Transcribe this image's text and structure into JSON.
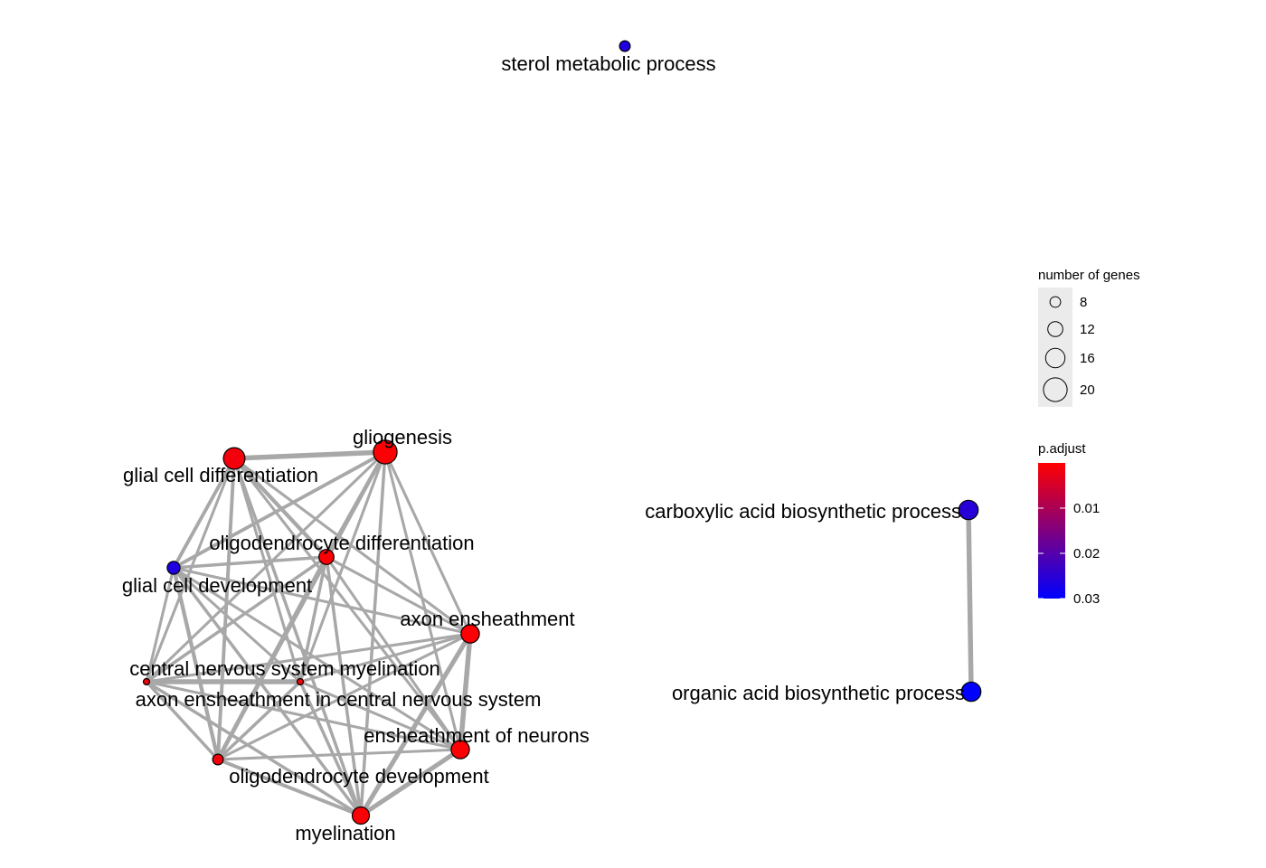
{
  "network": {
    "nodes": [
      {
        "id": "sterol",
        "label": "sterol metabolic process",
        "genes": 8,
        "p_adjust": 0.029
      },
      {
        "id": "gliogenesis",
        "label": "gliogenesis",
        "genes": 20,
        "p_adjust": 0.001
      },
      {
        "id": "glial_diff",
        "label": "glial cell differentiation",
        "genes": 18,
        "p_adjust": 0.002
      },
      {
        "id": "oligo_diff",
        "label": "oligodendrocyte differentiation",
        "genes": 12,
        "p_adjust": 0.001
      },
      {
        "id": "glial_dev",
        "label": "glial cell development",
        "genes": 10,
        "p_adjust": 0.029
      },
      {
        "id": "axon_ens",
        "label": "axon ensheathment",
        "genes": 15,
        "p_adjust": 0.001
      },
      {
        "id": "cns_myel",
        "label": "central nervous system myelination",
        "genes": 4,
        "p_adjust": 0.002
      },
      {
        "id": "axon_ens_cns",
        "label": "axon ensheathment in central nervous system",
        "genes": 4,
        "p_adjust": 0.002
      },
      {
        "id": "ens_neurons",
        "label": "ensheathment of neurons",
        "genes": 15,
        "p_adjust": 0.001
      },
      {
        "id": "oligo_dev",
        "label": "oligodendrocyte development",
        "genes": 8,
        "p_adjust": 0.002
      },
      {
        "id": "myelination",
        "label": "myelination",
        "genes": 14,
        "p_adjust": 0.001
      },
      {
        "id": "carboxylic",
        "label": "carboxylic acid biosynthetic process",
        "genes": 16,
        "p_adjust": 0.028
      },
      {
        "id": "organic",
        "label": "organic acid biosynthetic process",
        "genes": 16,
        "p_adjust": 0.033
      }
    ],
    "edges": [
      {
        "source": "glial_diff",
        "target": "gliogenesis",
        "weight": 1.0
      },
      {
        "source": "glial_diff",
        "target": "oligo_diff",
        "weight": 0.7
      },
      {
        "source": "glial_diff",
        "target": "glial_dev",
        "weight": 0.6
      },
      {
        "source": "glial_diff",
        "target": "axon_ens",
        "weight": 0.4
      },
      {
        "source": "glial_diff",
        "target": "cns_myel",
        "weight": 0.4
      },
      {
        "source": "glial_diff",
        "target": "axon_ens_cns",
        "weight": 0.4
      },
      {
        "source": "glial_diff",
        "target": "ens_neurons",
        "weight": 0.4
      },
      {
        "source": "glial_diff",
        "target": "oligo_dev",
        "weight": 0.6
      },
      {
        "source": "glial_diff",
        "target": "myelination",
        "weight": 0.5
      },
      {
        "source": "gliogenesis",
        "target": "oligo_diff",
        "weight": 0.7
      },
      {
        "source": "gliogenesis",
        "target": "glial_dev",
        "weight": 0.6
      },
      {
        "source": "gliogenesis",
        "target": "axon_ens",
        "weight": 0.4
      },
      {
        "source": "gliogenesis",
        "target": "cns_myel",
        "weight": 0.4
      },
      {
        "source": "gliogenesis",
        "target": "axon_ens_cns",
        "weight": 0.4
      },
      {
        "source": "gliogenesis",
        "target": "ens_neurons",
        "weight": 0.4
      },
      {
        "source": "gliogenesis",
        "target": "oligo_dev",
        "weight": 0.6
      },
      {
        "source": "gliogenesis",
        "target": "myelination",
        "weight": 0.5
      },
      {
        "source": "oligo_diff",
        "target": "glial_dev",
        "weight": 0.5
      },
      {
        "source": "oligo_diff",
        "target": "axon_ens",
        "weight": 0.4
      },
      {
        "source": "oligo_diff",
        "target": "cns_myel",
        "weight": 0.5
      },
      {
        "source": "oligo_diff",
        "target": "axon_ens_cns",
        "weight": 0.5
      },
      {
        "source": "oligo_diff",
        "target": "ens_neurons",
        "weight": 0.4
      },
      {
        "source": "oligo_diff",
        "target": "oligo_dev",
        "weight": 0.8
      },
      {
        "source": "oligo_diff",
        "target": "myelination",
        "weight": 0.5
      },
      {
        "source": "glial_dev",
        "target": "axon_ens",
        "weight": 0.4
      },
      {
        "source": "glial_dev",
        "target": "cns_myel",
        "weight": 0.4
      },
      {
        "source": "glial_dev",
        "target": "axon_ens_cns",
        "weight": 0.4
      },
      {
        "source": "glial_dev",
        "target": "ens_neurons",
        "weight": 0.4
      },
      {
        "source": "glial_dev",
        "target": "oligo_dev",
        "weight": 0.7
      },
      {
        "source": "glial_dev",
        "target": "myelination",
        "weight": 0.5
      },
      {
        "source": "axon_ens",
        "target": "ens_neurons",
        "weight": 1.0
      },
      {
        "source": "axon_ens",
        "target": "myelination",
        "weight": 0.9
      },
      {
        "source": "axon_ens",
        "target": "cns_myel",
        "weight": 0.4
      },
      {
        "source": "axon_ens",
        "target": "axon_ens_cns",
        "weight": 0.4
      },
      {
        "source": "axon_ens",
        "target": "oligo_dev",
        "weight": 0.4
      },
      {
        "source": "ens_neurons",
        "target": "myelination",
        "weight": 0.9
      },
      {
        "source": "ens_neurons",
        "target": "cns_myel",
        "weight": 0.4
      },
      {
        "source": "ens_neurons",
        "target": "axon_ens_cns",
        "weight": 0.4
      },
      {
        "source": "ens_neurons",
        "target": "oligo_dev",
        "weight": 0.4
      },
      {
        "source": "myelination",
        "target": "cns_myel",
        "weight": 0.5
      },
      {
        "source": "myelination",
        "target": "axon_ens_cns",
        "weight": 0.5
      },
      {
        "source": "myelination",
        "target": "oligo_dev",
        "weight": 0.6
      },
      {
        "source": "cns_myel",
        "target": "axon_ens_cns",
        "weight": 1.0
      },
      {
        "source": "cns_myel",
        "target": "oligo_dev",
        "weight": 0.5
      },
      {
        "source": "axon_ens_cns",
        "target": "oligo_dev",
        "weight": 0.5
      },
      {
        "source": "carboxylic",
        "target": "organic",
        "weight": 1.0
      }
    ]
  },
  "legend": {
    "size_title": "number of genes",
    "size_entries": [
      {
        "label": "8",
        "genes": 8
      },
      {
        "label": "12",
        "genes": 12
      },
      {
        "label": "16",
        "genes": 16
      },
      {
        "label": "20",
        "genes": 20
      }
    ],
    "color_title": "p.adjust",
    "color_ticks": [
      {
        "label": "0.01",
        "value": 0.01
      },
      {
        "label": "0.02",
        "value": 0.02
      },
      {
        "label": "0.03",
        "value": 0.03
      }
    ],
    "color_range": [
      0.0005,
      0.033
    ],
    "color_low": "#ff0000",
    "color_high": "#0000ff"
  },
  "colors": {
    "edge": "#a8a8a8",
    "legend_key_bg": "#ebebeb"
  }
}
